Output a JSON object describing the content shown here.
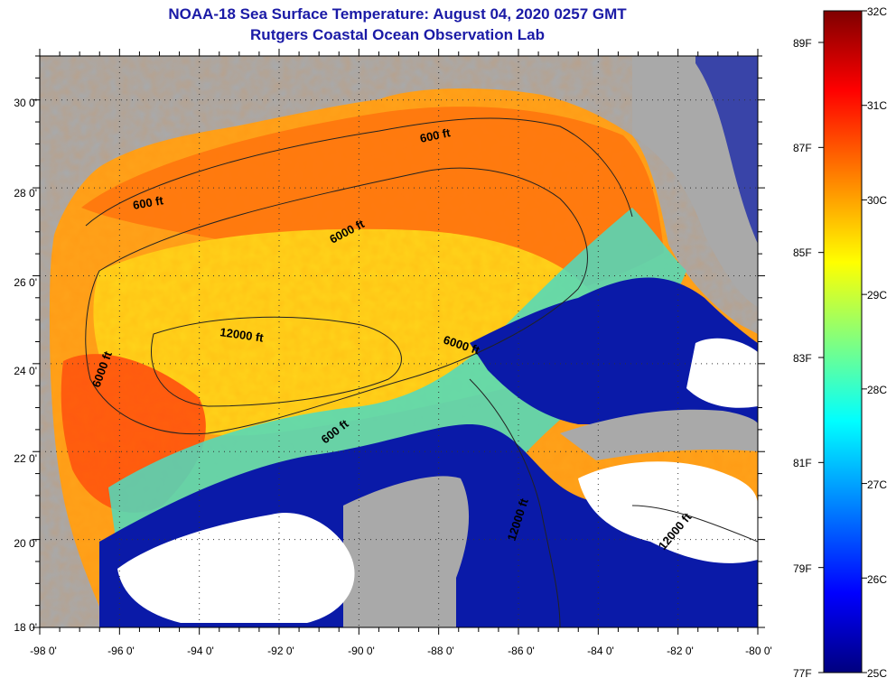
{
  "header": {
    "title": "NOAA-18 Sea Surface Temperature:  August 04, 2020 0257 GMT",
    "subtitle": "Rutgers Coastal Ocean Observation Lab"
  },
  "axes": {
    "lat_labels": [
      "30 0'",
      "28 0'",
      "26 0'",
      "24 0'",
      "22 0'",
      "20 0'",
      "18 0'"
    ],
    "lon_labels": [
      "-98 0'",
      "-96 0'",
      "-94 0'",
      "-92 0'",
      "-90 0'",
      "-88 0'",
      "-86 0'",
      "-84 0'",
      "-82 0'",
      "-80 0'"
    ],
    "lat_range": [
      18,
      31
    ],
    "lon_range": [
      -98,
      -80
    ]
  },
  "colorbar": {
    "fahrenheit_labels": [
      "89F",
      "87F",
      "85F",
      "83F",
      "81F",
      "79F",
      "77F"
    ],
    "celsius_labels": [
      "32C",
      "31C",
      "30C",
      "29C",
      "28C",
      "27C",
      "26C",
      "25C"
    ],
    "range_c": [
      25,
      32
    ],
    "colors": [
      "#00007f",
      "#0000ff",
      "#0080ff",
      "#00ffff",
      "#80ff80",
      "#ffff00",
      "#ff8000",
      "#ff0000",
      "#7f0000"
    ]
  },
  "contours": [
    {
      "label": "600 ft"
    },
    {
      "label": "600 ft"
    },
    {
      "label": "6000 ft"
    },
    {
      "label": "12000 ft"
    },
    {
      "label": "6000 ft"
    },
    {
      "label": "6000 ft"
    },
    {
      "label": "600 ft"
    },
    {
      "label": "12000 ft"
    },
    {
      "label": "12000 ft"
    }
  ],
  "colors": {
    "land": "#a9a9a9",
    "cloud": "#ffffff",
    "title": "#1a1aa6"
  }
}
